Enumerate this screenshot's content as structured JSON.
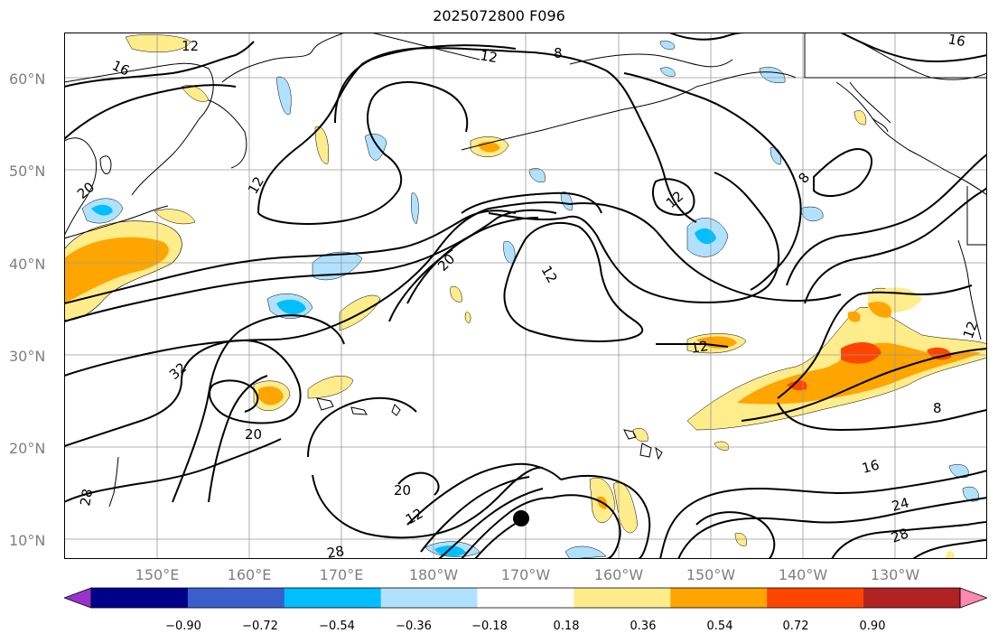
{
  "title": "2025072800 F096",
  "lat_labels": [
    "60°N",
    "50°N",
    "40°N",
    "30°N",
    "20°N",
    "10°N"
  ],
  "lon_labels": [
    "150°E",
    "160°E",
    "170°E",
    "180°W",
    "170°W",
    "160°W",
    "150°W",
    "140°W",
    "130°W"
  ],
  "contour_labels": [
    "12",
    "16",
    "8",
    "16",
    "12",
    "20",
    "12",
    "20",
    "12",
    "12",
    "8",
    "32",
    "20",
    "20",
    "12",
    "28",
    "8",
    "16",
    "24",
    "28",
    "28",
    "12",
    "12"
  ],
  "colorbar": {
    "ticks": [
      "−0.90",
      "−0.72",
      "−0.54",
      "−0.36",
      "−0.18",
      "0.18",
      "0.36",
      "0.54",
      "0.72",
      "0.90"
    ],
    "colors": [
      "#9932cc",
      "#00008b",
      "#3a5fcd",
      "#00bfff",
      "#b0e2ff",
      "#ffffff",
      "#ffec8b",
      "#ffa500",
      "#ff4500",
      "#b22222",
      "#ff88b0"
    ]
  }
}
